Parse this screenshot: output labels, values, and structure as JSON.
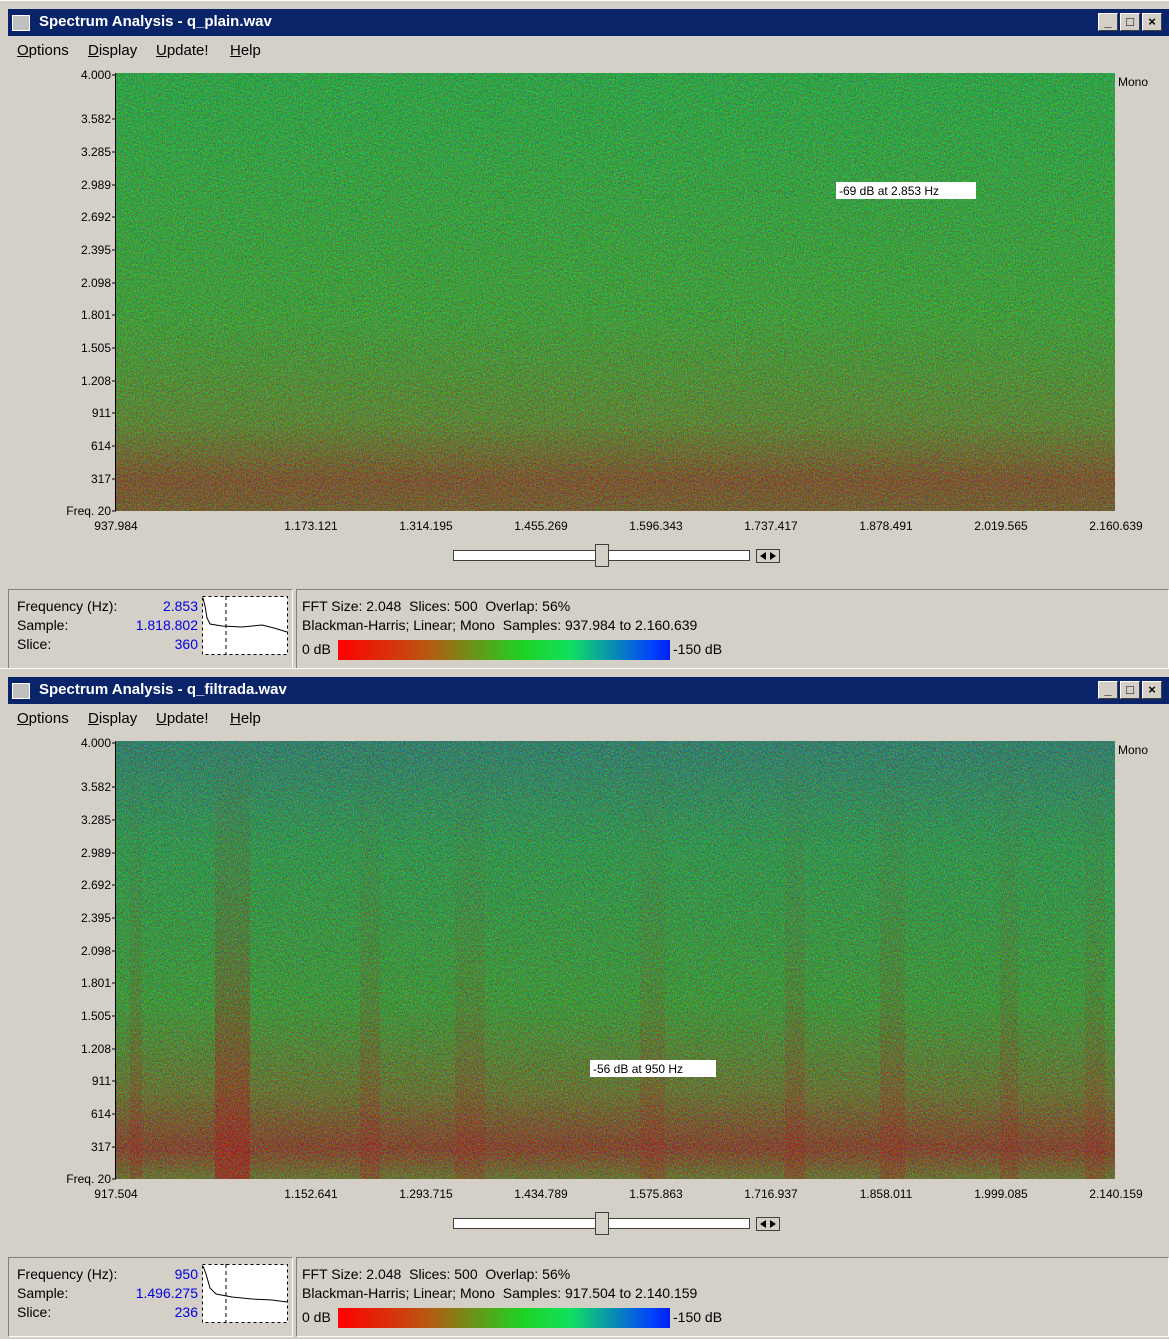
{
  "windows": [
    {
      "title": "Spectrum Analysis - q_plain.wav",
      "menu": [
        "Options",
        "Display",
        "Update!",
        "Help"
      ],
      "channel": "Mono",
      "yticks": [
        "4.000",
        "3.582",
        "3.285",
        "2.989",
        "2.692",
        "2.395",
        "2.098",
        "1.801",
        "1.505",
        "1.208",
        "911",
        "614",
        "317",
        "Freq. 20"
      ],
      "xticks": [
        "937.984",
        "1.173.121",
        "1.314.195",
        "1.455.269",
        "1.596.343",
        "1.737.417",
        "1.878.491",
        "2.019.565",
        "2.160.639"
      ],
      "cursor_label": "-69 dB at 2.853 Hz",
      "info": {
        "rows": [
          {
            "label": "Frequency (Hz):",
            "value": "2.853"
          },
          {
            "label": "Sample:",
            "value": "1.818.802"
          },
          {
            "label": "Slice:",
            "value": "360"
          }
        ],
        "line1": "FFT Size: 2.048  Slices: 500  Overlap: 56%",
        "line2": "Blackman-Harris; Linear; Mono  Samples: 937.984 to 2.160.639",
        "scale_min": "0 dB",
        "scale_max": "-150 dB"
      }
    },
    {
      "title": "Spectrum Analysis - q_filtrada.wav",
      "menu": [
        "Options",
        "Display",
        "Update!",
        "Help"
      ],
      "channel": "Mono",
      "yticks": [
        "4.000",
        "3.582",
        "3.285",
        "2.989",
        "2.692",
        "2.395",
        "2.098",
        "1.801",
        "1.505",
        "1.208",
        "911",
        "614",
        "317",
        "Freq. 20"
      ],
      "xticks": [
        "917.504",
        "1.152.641",
        "1.293.715",
        "1.434.789",
        "1.575.863",
        "1.716.937",
        "1.858.011",
        "1.999.085",
        "2.140.159"
      ],
      "cursor_label": "-56 dB at 950 Hz",
      "info": {
        "rows": [
          {
            "label": "Frequency (Hz):",
            "value": "950"
          },
          {
            "label": "Sample:",
            "value": "1.496.275"
          },
          {
            "label": "Slice:",
            "value": "236"
          }
        ],
        "line1": "FFT Size: 2.048  Slices: 500  Overlap: 56%",
        "line2": "Blackman-Harris; Linear; Mono  Samples: 917.504 to 2.140.159",
        "scale_min": "0 dB",
        "scale_max": "-150 dB"
      }
    }
  ]
}
